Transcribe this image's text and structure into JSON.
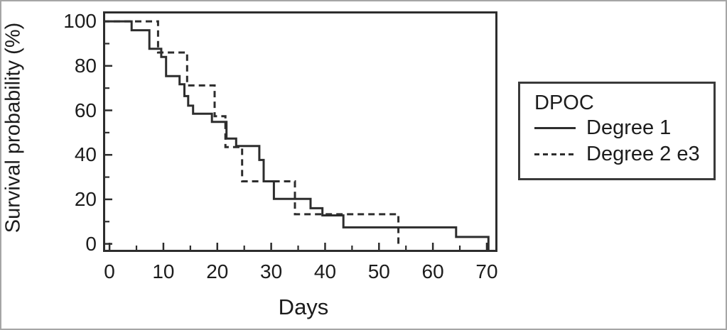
{
  "figure": {
    "ylabel": "Survival probability (%)",
    "xlabel": "Days"
  },
  "legend": {
    "title": "DPOC",
    "entries": [
      {
        "label": "Degree 1",
        "style": "solid"
      },
      {
        "label": "Degree 2 e3",
        "style": "dashed"
      }
    ]
  },
  "colors": {
    "line": "#2d2d2d",
    "text": "#1c1c1c",
    "frame": "#2d2d2d",
    "background": "#ffffff"
  },
  "chart_data": {
    "type": "line",
    "subtype": "kaplan-meier-step",
    "title": "",
    "xlabel": "Days",
    "ylabel": "Survival probability (%)",
    "xlim": [
      0,
      70
    ],
    "ylim": [
      0,
      100
    ],
    "x_ticks_major": [
      0,
      10,
      20,
      30,
      40,
      50,
      60,
      70
    ],
    "x_ticks_minor": [
      5,
      15,
      25,
      35,
      45,
      55,
      65
    ],
    "y_ticks_major": [
      0,
      20,
      40,
      60,
      80,
      100
    ],
    "y_ticks_minor": [
      10,
      30,
      50,
      70,
      90
    ],
    "grid": false,
    "legend_position": "right-outside",
    "legend_title": "DPOC",
    "series": [
      {
        "name": "Degree 1",
        "line_style": "solid",
        "color": "#2d2d2d",
        "start_value": 100,
        "steps": [
          [
            4.1,
            96
          ],
          [
            7.4,
            87.7
          ],
          [
            9.6,
            84
          ],
          [
            10.5,
            75.4
          ],
          [
            13.0,
            71.7
          ],
          [
            13.9,
            66.4
          ],
          [
            14.6,
            62.1
          ],
          [
            15.5,
            58.5
          ],
          [
            19.0,
            54.8
          ],
          [
            21.7,
            47.3
          ],
          [
            23.5,
            44.0
          ],
          [
            27.8,
            37.7
          ],
          [
            28.6,
            28.1
          ],
          [
            30.5,
            20.2
          ],
          [
            37.3,
            16.0
          ],
          [
            39.5,
            12.8
          ],
          [
            43.4,
            7.4
          ],
          [
            64.3,
            3.1
          ],
          [
            70.3,
            0
          ]
        ],
        "drops_to_axis_at_end": true
      },
      {
        "name": "Degree 2 e3",
        "line_style": "dashed",
        "color": "#2d2d2d",
        "start_value": 100,
        "steps": [
          [
            9.0,
            86.0
          ],
          [
            14.4,
            71.2
          ],
          [
            19.5,
            57.4
          ],
          [
            21.5,
            43.5
          ],
          [
            24.6,
            28.1
          ],
          [
            34.4,
            13.3
          ],
          [
            53.6,
            0
          ]
        ],
        "drops_to_axis_at_end": false
      }
    ]
  }
}
